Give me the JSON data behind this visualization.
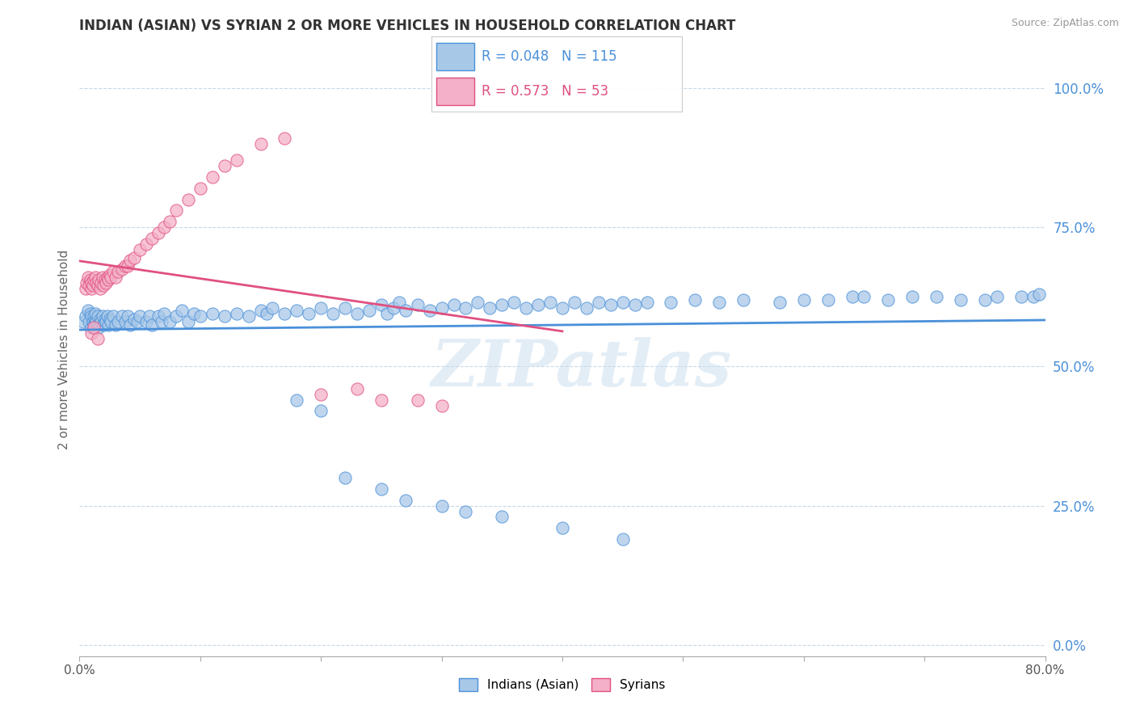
{
  "title": "INDIAN (ASIAN) VS SYRIAN 2 OR MORE VEHICLES IN HOUSEHOLD CORRELATION CHART",
  "source": "Source: ZipAtlas.com",
  "ylabel": "2 or more Vehicles in Household",
  "xlim": [
    0.0,
    0.8
  ],
  "ylim": [
    -0.02,
    1.08
  ],
  "ytick_labels": [
    "0.0%",
    "25.0%",
    "50.0%",
    "75.0%",
    "100.0%"
  ],
  "ytick_vals": [
    0.0,
    0.25,
    0.5,
    0.75,
    1.0
  ],
  "xtick_vals": [
    0.0,
    0.1,
    0.2,
    0.3,
    0.4,
    0.5,
    0.6,
    0.7,
    0.8
  ],
  "xtick_labels": [
    "0.0%",
    "",
    "",
    "",
    "",
    "",
    "",
    "",
    "80.0%"
  ],
  "watermark": "ZIPatlas",
  "legend_label1": "Indians (Asian)",
  "legend_label2": "Syrians",
  "R1": 0.048,
  "N1": 115,
  "R2": 0.573,
  "N2": 53,
  "color_indian": "#a8c8e8",
  "color_syrian": "#f4b0c8",
  "color_indian_line": "#4a90d9",
  "color_syrian_line": "#e05080",
  "background_color": "#ffffff",
  "grid_color": "#c8d8e8",
  "indian_x": [
    0.003,
    0.005,
    0.007,
    0.008,
    0.009,
    0.01,
    0.01,
    0.011,
    0.012,
    0.012,
    0.013,
    0.013,
    0.014,
    0.015,
    0.016,
    0.017,
    0.018,
    0.019,
    0.02,
    0.021,
    0.022,
    0.023,
    0.024,
    0.025,
    0.026,
    0.028,
    0.03,
    0.032,
    0.035,
    0.038,
    0.04,
    0.042,
    0.045,
    0.048,
    0.05,
    0.055,
    0.058,
    0.06,
    0.065,
    0.068,
    0.07,
    0.075,
    0.08,
    0.085,
    0.09,
    0.095,
    0.1,
    0.11,
    0.12,
    0.13,
    0.14,
    0.15,
    0.155,
    0.16,
    0.17,
    0.18,
    0.19,
    0.2,
    0.21,
    0.22,
    0.23,
    0.24,
    0.25,
    0.255,
    0.26,
    0.265,
    0.27,
    0.28,
    0.29,
    0.3,
    0.31,
    0.32,
    0.33,
    0.34,
    0.35,
    0.36,
    0.37,
    0.38,
    0.39,
    0.4,
    0.41,
    0.42,
    0.43,
    0.44,
    0.45,
    0.46,
    0.47,
    0.49,
    0.51,
    0.53,
    0.55,
    0.58,
    0.6,
    0.62,
    0.64,
    0.65,
    0.67,
    0.69,
    0.71,
    0.73,
    0.75,
    0.76,
    0.78,
    0.79,
    0.795,
    0.18,
    0.2,
    0.22,
    0.25,
    0.27,
    0.3,
    0.32,
    0.35,
    0.4,
    0.45
  ],
  "indian_y": [
    0.58,
    0.59,
    0.6,
    0.58,
    0.595,
    0.57,
    0.59,
    0.58,
    0.575,
    0.59,
    0.585,
    0.595,
    0.58,
    0.59,
    0.57,
    0.585,
    0.58,
    0.59,
    0.575,
    0.585,
    0.58,
    0.59,
    0.575,
    0.585,
    0.58,
    0.59,
    0.575,
    0.58,
    0.59,
    0.58,
    0.59,
    0.575,
    0.585,
    0.58,
    0.59,
    0.58,
    0.59,
    0.575,
    0.59,
    0.58,
    0.595,
    0.58,
    0.59,
    0.6,
    0.58,
    0.595,
    0.59,
    0.595,
    0.59,
    0.595,
    0.59,
    0.6,
    0.595,
    0.605,
    0.595,
    0.6,
    0.595,
    0.605,
    0.595,
    0.605,
    0.595,
    0.6,
    0.61,
    0.595,
    0.605,
    0.615,
    0.6,
    0.61,
    0.6,
    0.605,
    0.61,
    0.605,
    0.615,
    0.605,
    0.61,
    0.615,
    0.605,
    0.61,
    0.615,
    0.605,
    0.615,
    0.605,
    0.615,
    0.61,
    0.615,
    0.61,
    0.615,
    0.615,
    0.62,
    0.615,
    0.62,
    0.615,
    0.62,
    0.62,
    0.625,
    0.625,
    0.62,
    0.625,
    0.625,
    0.62,
    0.62,
    0.625,
    0.625,
    0.625,
    0.63,
    0.44,
    0.42,
    0.3,
    0.28,
    0.26,
    0.25,
    0.24,
    0.23,
    0.21,
    0.19
  ],
  "syrian_x": [
    0.005,
    0.006,
    0.007,
    0.008,
    0.009,
    0.01,
    0.01,
    0.011,
    0.012,
    0.013,
    0.014,
    0.015,
    0.016,
    0.017,
    0.018,
    0.019,
    0.02,
    0.021,
    0.022,
    0.023,
    0.024,
    0.025,
    0.026,
    0.028,
    0.03,
    0.032,
    0.035,
    0.038,
    0.04,
    0.042,
    0.045,
    0.05,
    0.055,
    0.06,
    0.065,
    0.07,
    0.075,
    0.08,
    0.09,
    0.1,
    0.11,
    0.12,
    0.13,
    0.15,
    0.17,
    0.2,
    0.23,
    0.25,
    0.28,
    0.3,
    0.01,
    0.012,
    0.015
  ],
  "syrian_y": [
    0.64,
    0.65,
    0.66,
    0.645,
    0.655,
    0.64,
    0.65,
    0.645,
    0.655,
    0.66,
    0.65,
    0.645,
    0.655,
    0.64,
    0.65,
    0.66,
    0.645,
    0.655,
    0.65,
    0.66,
    0.655,
    0.665,
    0.66,
    0.67,
    0.66,
    0.67,
    0.675,
    0.68,
    0.68,
    0.69,
    0.695,
    0.71,
    0.72,
    0.73,
    0.74,
    0.75,
    0.76,
    0.78,
    0.8,
    0.82,
    0.84,
    0.86,
    0.87,
    0.9,
    0.91,
    0.45,
    0.46,
    0.44,
    0.44,
    0.43,
    0.56,
    0.57,
    0.55
  ]
}
